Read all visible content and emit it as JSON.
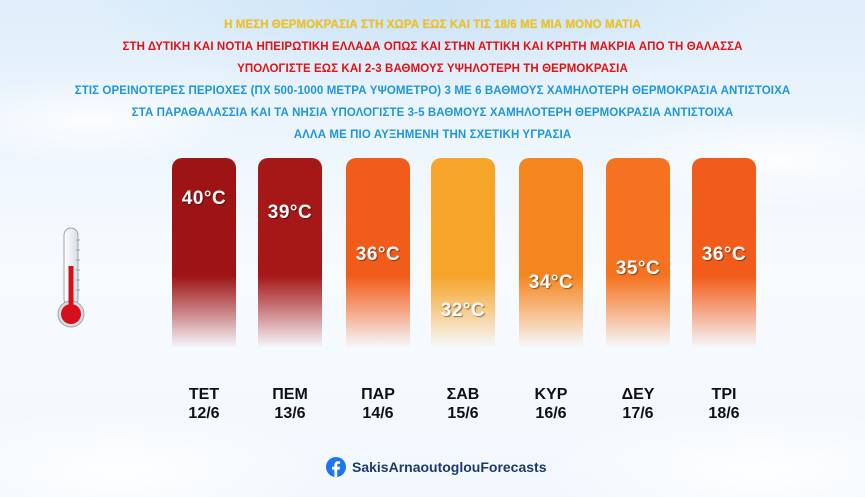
{
  "header": {
    "lines": [
      {
        "text": "Η ΜΕΣΗ ΘΕΡΜΟΚΡΑΣΙΑ ΣΤΗ ΧΩΡΑ ΕΩΣ ΚΑΙ ΤΙΣ 18/6 ΜΕ ΜΙΑ ΜΟΝΟ ΜΑΤΙΑ",
        "color": "yellow"
      },
      {
        "text": "ΣΤΗ ΔΥΤΙΚΗ ΚΑΙ ΝΟΤΙΑ ΗΠΕΙΡΩΤΙΚΗ ΕΛΛΑΔΑ ΟΠΩΣ ΚΑΙ ΣΤΗΝ ΑΤΤΙΚΗ ΚΑΙ ΚΡΗΤΗ ΜΑΚΡΙΑ ΑΠΟ ΤΗ ΘΑΛΑΣΣΑ",
        "color": "red"
      },
      {
        "text": "ΥΠΟΛΟΓΙΣΤΕ ΕΩΣ ΚΑΙ 2-3 ΒΑΘΜΟΥΣ ΥΨΗΛΟΤΕΡΗ ΤΗ ΘΕΡΜΟΚΡΑΣΙΑ",
        "color": "red"
      },
      {
        "text": "ΣΤΙΣ ΟΡΕΙΝΟΤΕΡΕΣ ΠΕΡΙΟΧΕΣ (ΠΧ 500-1000 ΜΕΤΡΑ ΥΨΟΜΕΤΡΟ) 3 ΜΕ 6 ΒΑΘΜΟΥΣ ΧΑΜΗΛΟΤΕΡΗ ΘΕΡΜΟΚΡΑΣΙΑ ΑΝΤΙΣΤΟΙΧΑ",
        "color": "blue"
      },
      {
        "text": "ΣΤΑ ΠΑΡΑΘΑΛΑΣΣΙΑ ΚΑΙ ΤΑ ΝΗΣΙΑ ΥΠΟΛΟΓΙΣΤΕ 3-5 ΒΑΘΜΟΥΣ ΧΑΜΗΛΟΤΕΡΗ ΘΕΡΜΟΚΡΑΣΙΑ ΑΝΤΙΣΤΟΙΧΑ",
        "color": "blue"
      },
      {
        "text": "ΑΛΛΑ ΜΕ ΠΙΟ ΑΥΞΗΜΕΝΗ ΤΗΝ ΣΧΕΤΙΚΗ ΥΓΡΑΣΙΑ",
        "color": "blue"
      }
    ]
  },
  "forecast": [
    {
      "day": "ΤΕΤ",
      "date": "12/6",
      "temp": "40°C",
      "value": 40,
      "color": "#9e1414"
    },
    {
      "day": "ΠΕΜ",
      "date": "13/6",
      "temp": "39°C",
      "value": 39,
      "color": "#a61818"
    },
    {
      "day": "ΠΑΡ",
      "date": "14/6",
      "temp": "36°C",
      "value": 36,
      "color": "#f25c1a"
    },
    {
      "day": "ΣΑΒ",
      "date": "15/6",
      "temp": "32°C",
      "value": 32,
      "color": "#f7a42a"
    },
    {
      "day": "ΚΥΡ",
      "date": "16/6",
      "temp": "34°C",
      "value": 34,
      "color": "#f5861f"
    },
    {
      "day": "ΔΕΥ",
      "date": "17/6",
      "temp": "35°C",
      "value": 35,
      "color": "#f57320"
    },
    {
      "day": "ΤΡΙ",
      "date": "18/6",
      "temp": "36°C",
      "value": 36,
      "color": "#f25c1a"
    }
  ],
  "footer": {
    "facebook_icon": "facebook-icon",
    "page_name": "SakisArnaoutoglouForecasts"
  },
  "colors": {
    "yellow": "#f2c21a",
    "red": "#e01212",
    "blue": "#1f96db",
    "facebook": "#1b76f2"
  }
}
